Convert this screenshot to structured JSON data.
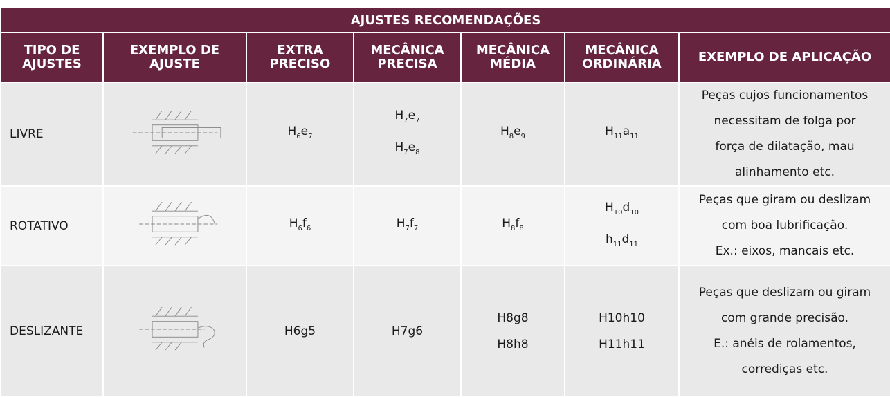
{
  "table": {
    "title": "AJUSTES RECOMENDAÇÕES",
    "headers": [
      "TIPO DE AJUSTES",
      "EXEMPLO DE AJUSTE",
      "EXTRA PRECISO",
      "MECÂNICA PRECISA",
      "MECÂNICA MÉDIA",
      "MECÂNICA ORDINÁRIA",
      "EXEMPLO DE APLICAÇÃO"
    ],
    "rows": [
      {
        "type": "LIVRE",
        "subscript_digits": true,
        "fits": [
          [
            "H6e7"
          ],
          [
            "H7e7",
            "H7e8"
          ],
          [
            "H8e9"
          ],
          [
            "H11a11"
          ]
        ],
        "application": [
          "Peças cujos funcionamentos",
          "necessitam de folga por",
          "força de dilatação, mau",
          "alinhamento etc."
        ]
      },
      {
        "type": "ROTATIVO",
        "subscript_digits": true,
        "fits": [
          [
            "H6f6"
          ],
          [
            "H7f7"
          ],
          [
            "H8f8"
          ],
          [
            "H10d10",
            "h11d11"
          ]
        ],
        "application": [
          "Peças que giram ou deslizam",
          "com boa lubrificação.",
          "Ex.: eixos, mancais etc."
        ]
      },
      {
        "type": "DESLIZANTE",
        "subscript_digits": false,
        "fits": [
          [
            "H6g5"
          ],
          [
            "H7g6"
          ],
          [
            "H8g8",
            "H8h8"
          ],
          [
            "H10h10",
            "H11h11"
          ]
        ],
        "application": [
          "Peças que deslizam ou giram",
          "com grande precisão.",
          "E.: anéis de rolamentos,",
          "corrediças etc."
        ]
      }
    ]
  }
}
